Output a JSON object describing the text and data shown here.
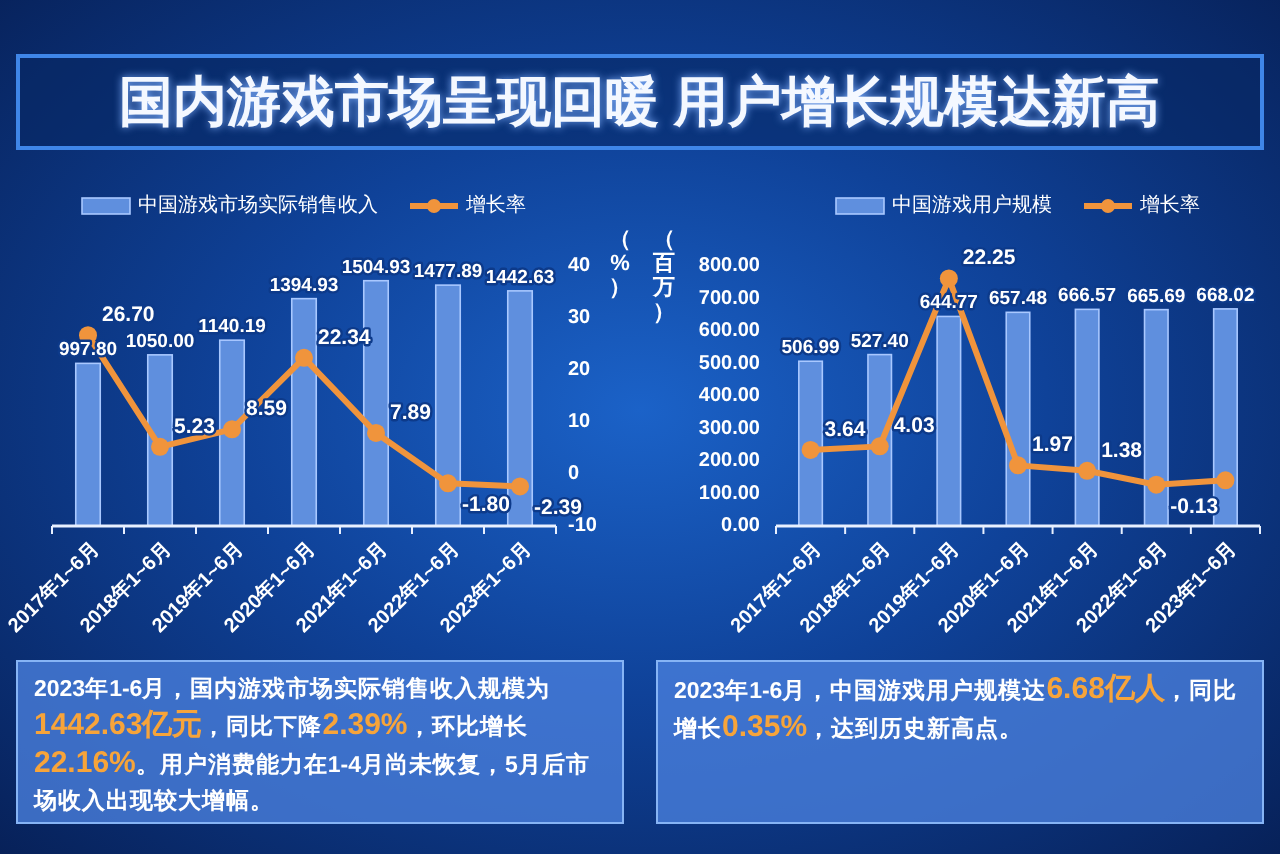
{
  "chart_data": [
    {
      "type": "other",
      "title": "国内游戏市场呈现回暖 用户增长规模达新高"
    },
    {
      "type": "bar",
      "categories": [
        "2017年1~6月",
        "2018年1~6月",
        "2019年1~6月",
        "2020年1~6月",
        "2021年1~6月",
        "2022年1~6月",
        "2023年1~6月"
      ],
      "series": [
        {
          "name": "中国游戏市场实际销售收入",
          "type": "bar",
          "color": "#5f8fde",
          "values": [
            997.8,
            1050.0,
            1140.19,
            1394.93,
            1504.93,
            1477.89,
            1442.63
          ],
          "value_labels": [
            "997.80",
            "1050.00",
            "1140.19",
            "1394.93",
            "1504.93",
            "1477.89",
            "1442.63"
          ]
        },
        {
          "name": "增长率",
          "type": "line",
          "axis": "y2",
          "color": "#f0943c",
          "values": [
            26.7,
            5.23,
            8.59,
            22.34,
            7.89,
            -1.8,
            -2.39
          ],
          "value_labels": [
            "26.70",
            "5.23",
            "8.59",
            "22.34",
            "7.89",
            "-1.80",
            "-2.39"
          ]
        }
      ],
      "y2lim": [
        -10,
        40
      ],
      "y2ticks": [
        40,
        30,
        20,
        10,
        0,
        -10
      ],
      "y2label": "（%）",
      "legend": "top",
      "marker": "circle",
      "annotations": [
        "2023年1-6月，国内游戏市场实际销售收入规模为1442.63亿元，同比下降2.39%，环比增长22.16%。用户消费能力在1-4月尚未恢复，5月后市场收入出现较大增幅。"
      ]
    },
    {
      "type": "bar",
      "categories": [
        "2017年1~6月",
        "2018年1~6月",
        "2019年1~6月",
        "2020年1~6月",
        "2021年1~6月",
        "2022年1~6月",
        "2023年1~6月"
      ],
      "series": [
        {
          "name": "中国游戏用户规模",
          "type": "bar",
          "color": "#5f8fde",
          "values": [
            506.99,
            527.4,
            644.77,
            657.48,
            666.57,
            665.69,
            668.02
          ],
          "value_labels": [
            "506.99",
            "527.40",
            "644.77",
            "657.48",
            "666.57",
            "665.69",
            "668.02"
          ]
        },
        {
          "name": "增长率",
          "type": "line",
          "axis": "y2",
          "color": "#f0943c",
          "values": [
            3.64,
            4.03,
            22.25,
            1.97,
            1.38,
            -0.13,
            0.35
          ],
          "value_labels": [
            "3.64",
            "4.03",
            "22.25",
            "1.97",
            "1.38",
            "-0.13",
            null
          ]
        }
      ],
      "ylim": [
        0,
        800
      ],
      "yticks": [
        {
          "value": 0,
          "label": "0.00"
        },
        {
          "value": 100,
          "label": "100.00"
        },
        {
          "value": 200,
          "label": "200.00"
        },
        {
          "value": 300,
          "label": "300.00"
        },
        {
          "value": 400,
          "label": "400.00"
        },
        {
          "value": 500,
          "label": "500.00"
        },
        {
          "value": 600,
          "label": "600.00"
        },
        {
          "value": 700,
          "label": "700.00"
        },
        {
          "value": 800,
          "label": "800.00"
        }
      ],
      "ylabel": "（百万）",
      "legend": "top",
      "marker": "circle",
      "annotations": [
        "2023年1-6月，中国游戏用户规模达6.68亿人，同比增长0.35%，达到历史新高点。"
      ]
    }
  ]
}
